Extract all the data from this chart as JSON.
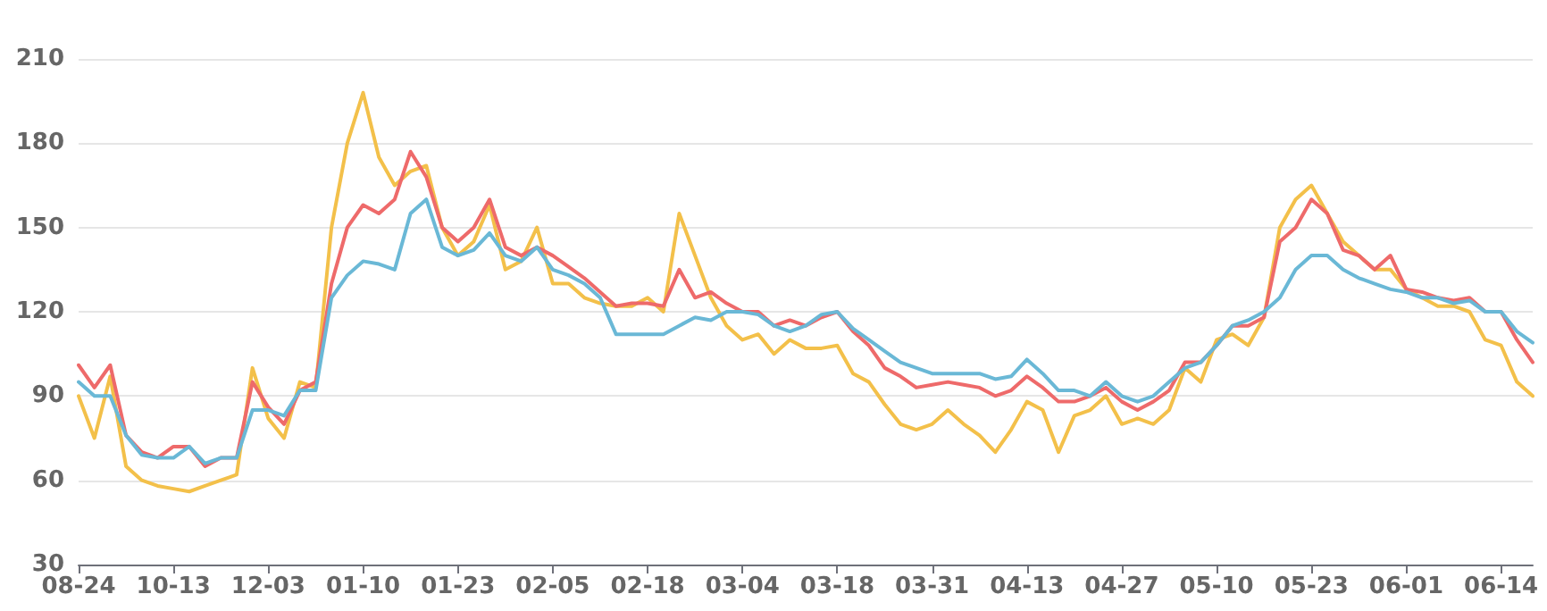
{
  "chart_data": {
    "type": "line",
    "categories": [
      "08-24",
      null,
      null,
      null,
      null,
      null,
      "10-13",
      null,
      null,
      null,
      null,
      null,
      "12-03",
      null,
      null,
      null,
      null,
      null,
      "01-10",
      null,
      null,
      null,
      null,
      null,
      "01-23",
      null,
      null,
      null,
      null,
      null,
      "02-05",
      null,
      null,
      null,
      null,
      null,
      "02-18",
      null,
      null,
      null,
      null,
      null,
      "03-04",
      null,
      null,
      null,
      null,
      null,
      "03-18",
      null,
      null,
      null,
      null,
      null,
      "03-31",
      null,
      null,
      null,
      null,
      null,
      "04-13",
      null,
      null,
      null,
      null,
      null,
      "04-27",
      null,
      null,
      null,
      null,
      null,
      "05-10",
      null,
      null,
      null,
      null,
      null,
      "05-23",
      null,
      null,
      null,
      null,
      null,
      "06-01",
      null,
      null,
      null,
      null,
      null,
      "06-14",
      null,
      null
    ],
    "series": [
      {
        "color": "#f3c04a",
        "values": [
          90,
          75,
          97,
          65,
          60,
          58,
          57,
          56,
          58,
          60,
          62,
          100,
          82,
          75,
          95,
          93,
          150,
          180,
          198,
          175,
          165,
          170,
          172,
          150,
          140,
          145,
          158,
          135,
          138,
          150,
          130,
          130,
          125,
          123,
          122,
          122,
          125,
          120,
          155,
          140,
          125,
          115,
          110,
          112,
          105,
          110,
          107,
          107,
          108,
          98,
          95,
          87,
          80,
          78,
          80,
          85,
          80,
          76,
          70,
          78,
          88,
          85,
          70,
          83,
          85,
          90,
          80,
          82,
          80,
          85,
          100,
          95,
          110,
          112,
          108,
          118,
          150,
          160,
          165,
          155,
          145,
          140,
          135,
          135,
          128,
          125,
          122,
          122,
          120,
          110,
          108,
          95,
          90
        ]
      },
      {
        "color": "#ee6a6a",
        "values": [
          101,
          93,
          101,
          76,
          70,
          68,
          72,
          72,
          65,
          68,
          68,
          95,
          86,
          80,
          92,
          95,
          130,
          150,
          158,
          155,
          160,
          177,
          168,
          150,
          145,
          150,
          160,
          143,
          140,
          143,
          140,
          136,
          132,
          127,
          122,
          123,
          123,
          122,
          135,
          125,
          127,
          123,
          120,
          120,
          115,
          117,
          115,
          118,
          120,
          113,
          108,
          100,
          97,
          93,
          94,
          95,
          94,
          93,
          90,
          92,
          97,
          93,
          88,
          88,
          90,
          93,
          88,
          85,
          88,
          92,
          102,
          102,
          108,
          115,
          115,
          118,
          145,
          150,
          160,
          155,
          142,
          140,
          135,
          140,
          128,
          127,
          125,
          124,
          125,
          120,
          120,
          110,
          102
        ]
      },
      {
        "color": "#6ab8d6",
        "values": [
          95,
          90,
          90,
          76,
          69,
          68,
          68,
          72,
          66,
          68,
          68,
          85,
          85,
          83,
          92,
          92,
          125,
          133,
          138,
          137,
          135,
          155,
          160,
          143,
          140,
          142,
          148,
          140,
          138,
          143,
          135,
          133,
          130,
          125,
          112,
          112,
          112,
          112,
          115,
          118,
          117,
          120,
          120,
          119,
          115,
          113,
          115,
          119,
          120,
          114,
          110,
          106,
          102,
          100,
          98,
          98,
          98,
          98,
          96,
          97,
          103,
          98,
          92,
          92,
          90,
          95,
          90,
          88,
          90,
          95,
          100,
          102,
          108,
          115,
          117,
          120,
          125,
          135,
          140,
          140,
          135,
          132,
          130,
          128,
          127,
          125,
          125,
          123,
          124,
          120,
          120,
          113,
          109
        ]
      }
    ],
    "ylim": [
      30,
      210
    ],
    "yticks": [
      30,
      60,
      90,
      120,
      150,
      180,
      210
    ],
    "grid": "y",
    "marker": "none",
    "line_style": "solid"
  }
}
